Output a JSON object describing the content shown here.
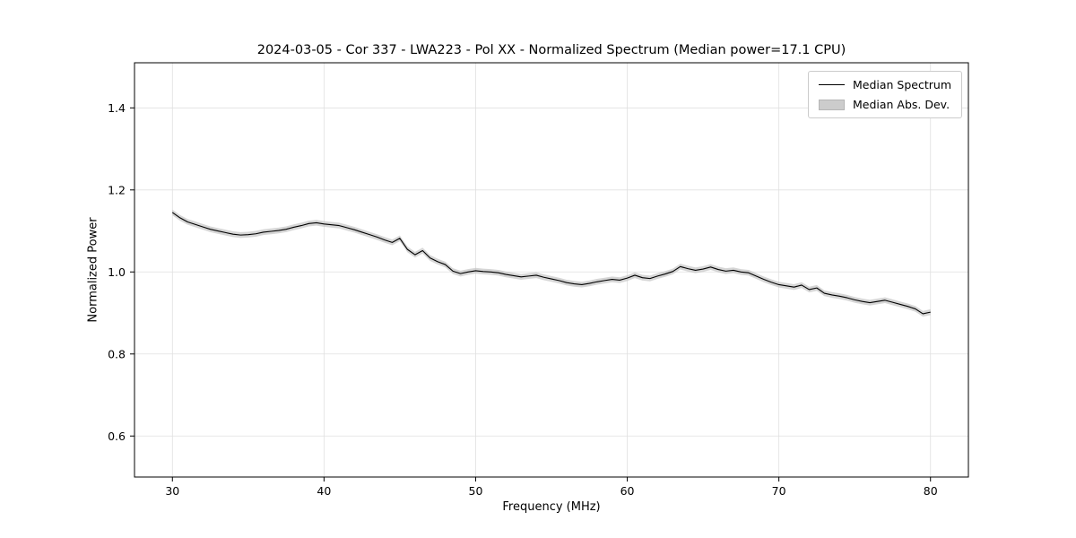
{
  "chart_data": {
    "type": "line",
    "title": "2024-03-05 - Cor 337 - LWA223 - Pol XX - Normalized Spectrum (Median power=17.1 CPU)",
    "xlabel": "Frequency (MHz)",
    "ylabel": "Normalized Power",
    "xlim": [
      27.5,
      82.5
    ],
    "ylim": [
      0.5,
      1.51
    ],
    "xticks": [
      30,
      40,
      50,
      60,
      70,
      80
    ],
    "xtick_labels": [
      "30",
      "40",
      "50",
      "60",
      "70",
      "80"
    ],
    "yticks": [
      0.6,
      0.8,
      1.0,
      1.2,
      1.4
    ],
    "ytick_labels": [
      "0.6",
      "0.8",
      "1.0",
      "1.2",
      "1.4"
    ],
    "grid": true,
    "legend": [
      "Median Spectrum",
      "Median Abs. Dev."
    ],
    "legend_position": "upper right",
    "colors": {
      "line": "#000000",
      "band": "#c0c0c0",
      "grid": "#e0e0e0",
      "spine": "#000000"
    },
    "series": [
      {
        "name": "Median Spectrum",
        "x": [
          30.0,
          30.5,
          31.0,
          31.5,
          32.0,
          32.5,
          33.0,
          33.5,
          34.0,
          34.5,
          35.0,
          35.5,
          36.0,
          36.5,
          37.0,
          37.5,
          38.0,
          38.5,
          39.0,
          39.5,
          40.0,
          40.5,
          41.0,
          41.5,
          42.0,
          42.5,
          43.0,
          43.5,
          44.0,
          44.5,
          45.0,
          45.5,
          46.0,
          46.5,
          47.0,
          47.5,
          48.0,
          48.5,
          49.0,
          49.5,
          50.0,
          50.5,
          51.0,
          51.5,
          52.0,
          52.5,
          53.0,
          53.5,
          54.0,
          54.5,
          55.0,
          55.5,
          56.0,
          56.5,
          57.0,
          57.5,
          58.0,
          58.5,
          59.0,
          59.5,
          60.0,
          60.5,
          61.0,
          61.5,
          62.0,
          62.5,
          63.0,
          63.5,
          64.0,
          64.5,
          65.0,
          65.5,
          66.0,
          66.5,
          67.0,
          67.5,
          68.0,
          68.5,
          69.0,
          69.5,
          70.0,
          70.5,
          71.0,
          71.5,
          72.0,
          72.5,
          73.0,
          73.5,
          74.0,
          74.5,
          75.0,
          75.5,
          76.0,
          76.5,
          77.0,
          77.5,
          78.0,
          78.5,
          79.0,
          79.5,
          80.0
        ],
        "y": [
          1.145,
          1.132,
          1.122,
          1.116,
          1.11,
          1.104,
          1.1,
          1.096,
          1.092,
          1.09,
          1.091,
          1.093,
          1.097,
          1.099,
          1.101,
          1.104,
          1.109,
          1.113,
          1.118,
          1.12,
          1.117,
          1.115,
          1.113,
          1.108,
          1.103,
          1.097,
          1.091,
          1.085,
          1.078,
          1.072,
          1.082,
          1.055,
          1.042,
          1.052,
          1.034,
          1.025,
          1.018,
          1.002,
          0.996,
          1.0,
          1.003,
          1.001,
          1.0,
          0.998,
          0.994,
          0.991,
          0.988,
          0.99,
          0.992,
          0.987,
          0.983,
          0.979,
          0.974,
          0.971,
          0.969,
          0.972,
          0.976,
          0.979,
          0.982,
          0.98,
          0.985,
          0.992,
          0.986,
          0.984,
          0.99,
          0.995,
          1.001,
          1.013,
          1.008,
          1.004,
          1.007,
          1.012,
          1.006,
          1.002,
          1.004,
          1.0,
          0.998,
          0.99,
          0.982,
          0.975,
          0.969,
          0.966,
          0.963,
          0.968,
          0.957,
          0.961,
          0.948,
          0.944,
          0.941,
          0.937,
          0.932,
          0.928,
          0.925,
          0.928,
          0.931,
          0.926,
          0.921,
          0.916,
          0.91,
          0.898,
          0.902
        ]
      },
      {
        "name": "Median Abs. Dev.",
        "band_halfwidth": 0.007
      }
    ]
  }
}
